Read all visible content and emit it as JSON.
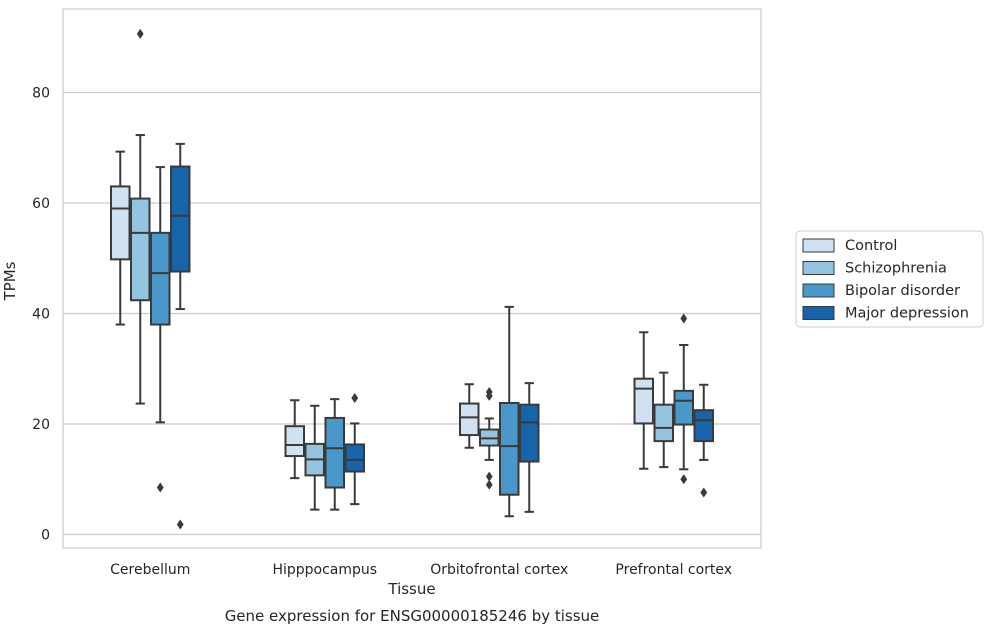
{
  "chart_data": {
    "type": "box",
    "xlabel": "Tissue",
    "ylabel": "TPMs",
    "caption": "Gene expression for ENSG00000185246 by tissue",
    "ylim": [
      -2.5,
      95
    ],
    "yticks": [
      0,
      20,
      40,
      60,
      80
    ],
    "grid": true,
    "legend_position": "right",
    "categories": [
      "Cerebellum",
      "Hipppocampus",
      "Orbitofrontal cortex",
      "Prefrontal cortex"
    ],
    "series": [
      {
        "name": "Control",
        "color": "#d0e1f2",
        "boxes": [
          {
            "whislo": 38.0,
            "q1": 49.8,
            "med": 59.0,
            "q3": 63.0,
            "whishi": 69.3,
            "fliers": []
          },
          {
            "whislo": 10.2,
            "q1": 14.2,
            "med": 16.2,
            "q3": 19.6,
            "whishi": 24.3,
            "fliers": []
          },
          {
            "whislo": 15.7,
            "q1": 18.0,
            "med": 21.2,
            "q3": 23.7,
            "whishi": 27.2,
            "fliers": []
          },
          {
            "whislo": 11.9,
            "q1": 20.1,
            "med": 26.4,
            "q3": 28.2,
            "whishi": 36.6,
            "fliers": []
          }
        ]
      },
      {
        "name": "Schizophrenia",
        "color": "#94c4df",
        "boxes": [
          {
            "whislo": 23.7,
            "q1": 42.4,
            "med": 54.6,
            "q3": 60.8,
            "whishi": 72.3,
            "fliers": [
              90.6
            ]
          },
          {
            "whislo": 4.5,
            "q1": 10.7,
            "med": 13.6,
            "q3": 16.4,
            "whishi": 23.3,
            "fliers": []
          },
          {
            "whislo": 13.5,
            "q1": 16.1,
            "med": 17.4,
            "q3": 19.0,
            "whishi": 21.0,
            "fliers": [
              25.1,
              25.8,
              10.5,
              9.0
            ]
          },
          {
            "whislo": 12.2,
            "q1": 16.9,
            "med": 19.3,
            "q3": 23.5,
            "whishi": 29.3,
            "fliers": []
          }
        ]
      },
      {
        "name": "Bipolar disorder",
        "color": "#4a98c9",
        "boxes": [
          {
            "whislo": 20.3,
            "q1": 38.0,
            "med": 47.3,
            "q3": 54.6,
            "whishi": 66.5,
            "fliers": [
              8.5
            ]
          },
          {
            "whislo": 4.5,
            "q1": 8.5,
            "med": 15.6,
            "q3": 21.1,
            "whishi": 24.5,
            "fliers": []
          },
          {
            "whislo": 3.3,
            "q1": 7.2,
            "med": 16.0,
            "q3": 23.8,
            "whishi": 41.2,
            "fliers": []
          },
          {
            "whislo": 11.8,
            "q1": 19.9,
            "med": 24.2,
            "q3": 26.0,
            "whishi": 34.3,
            "fliers": [
              39.1,
              10.0
            ]
          }
        ]
      },
      {
        "name": "Major depression",
        "color": "#1764ab",
        "boxes": [
          {
            "whislo": 40.8,
            "q1": 47.6,
            "med": 57.7,
            "q3": 66.6,
            "whishi": 70.7,
            "fliers": [
              1.8
            ]
          },
          {
            "whislo": 5.5,
            "q1": 11.4,
            "med": 13.5,
            "q3": 16.3,
            "whishi": 20.1,
            "fliers": [
              24.7
            ]
          },
          {
            "whislo": 4.1,
            "q1": 13.2,
            "med": 20.3,
            "q3": 23.5,
            "whishi": 27.4,
            "fliers": []
          },
          {
            "whislo": 13.5,
            "q1": 16.9,
            "med": 20.7,
            "q3": 22.5,
            "whishi": 27.1,
            "fliers": [
              7.6
            ]
          }
        ]
      }
    ]
  }
}
